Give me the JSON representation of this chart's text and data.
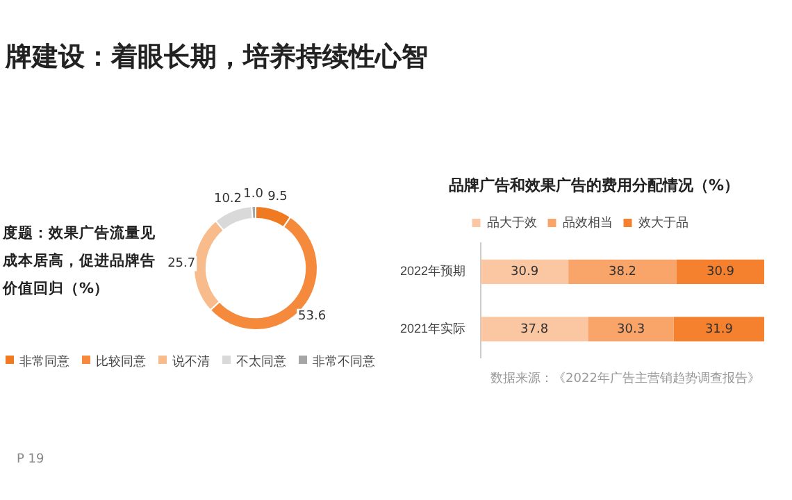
{
  "chart_data": [
    {
      "type": "donut",
      "title": "度题：效果广告流量见成本居高，促进品牌告价值回归（%）",
      "annotations": [
        "牌建设：着眼长期，培养持续性心智",
        "P 19"
      ],
      "categories": [
        "非常同意",
        "比较同意",
        "说不清",
        "不太同意",
        "非常不同意"
      ],
      "values": [
        9.5,
        53.6,
        25.7,
        10.2,
        1.0
      ],
      "colors": [
        "#f07a22",
        "#f58a3c",
        "#f8bb8c",
        "#d9d9d9",
        "#a6a6a6"
      ],
      "value_labels": [
        "9.5",
        "53.6",
        "25.7",
        "10.2",
        "1.0"
      ],
      "legend": "bottom"
    },
    {
      "type": "bar",
      "orientation": "horizontal",
      "stacked": true,
      "title": "品牌广告和效果广告的费用分配情况（%）",
      "categories": [
        "2022年预期",
        "2021年实际"
      ],
      "series": [
        {
          "name": "品大于效",
          "color": "#fbc7a2",
          "values": [
            30.9,
            37.8
          ]
        },
        {
          "name": "品效相当",
          "color": "#f9a56a",
          "values": [
            38.2,
            30.3
          ]
        },
        {
          "name": "效大于品",
          "color": "#f5802e",
          "values": [
            30.9,
            31.9
          ]
        }
      ],
      "data_labels": true,
      "legend": "top",
      "tick_labels": "y",
      "annotations": [
        "数据来源：《2022年广告主营销趋势调查报告》"
      ]
    }
  ]
}
